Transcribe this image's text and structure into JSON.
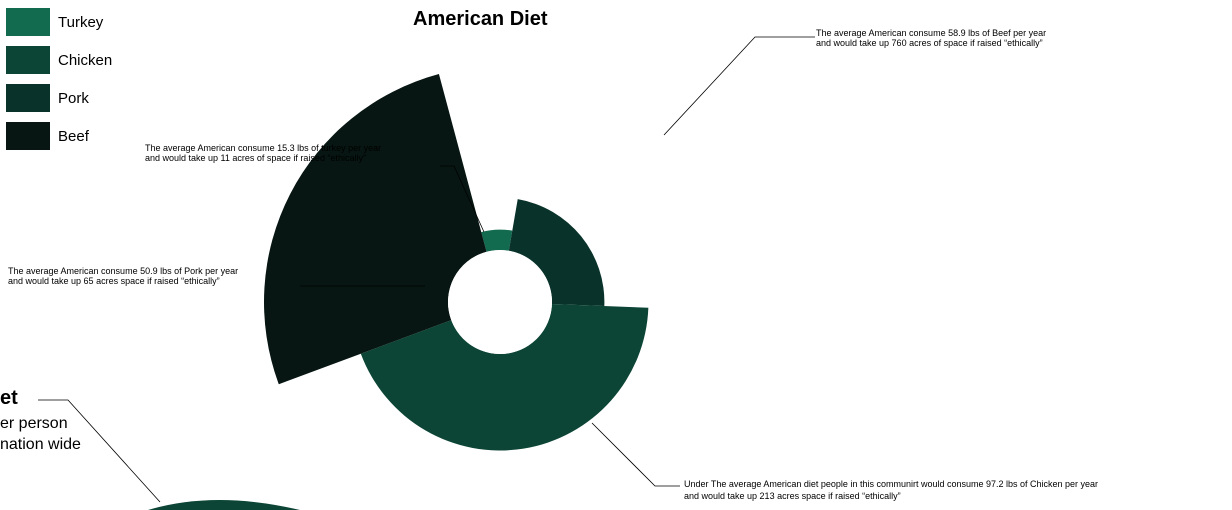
{
  "chart_data": {
    "type": "pie",
    "title": "American Diet",
    "categories": [
      "Turkey",
      "Chicken",
      "Pork",
      "Beef"
    ],
    "series": [
      {
        "name": "Turkey",
        "color": "#136b4f",
        "annotation_line1": "The average American consume 15.3 lbs of turkey per year",
        "annotation_line2": "and would take up 11 acres of space if raised “ethically”"
      },
      {
        "name": "Chicken",
        "color": "#0c4535",
        "annotation_line1": "Under The average American diet people in this communirt would consume 97.2 lbs of Chicken per year",
        "annotation_line2": "and would take up 213 acres space if raised “ethically”"
      },
      {
        "name": "Pork",
        "color": "#08322a",
        "annotation_line1": "The average American consume 50.9 lbs of Pork per year",
        "annotation_line2": "and would take up 65 acres space if raised “ethically”"
      },
      {
        "name": "Beef",
        "color": "#071612",
        "annotation_line1": "The average American consume 58.9 lbs of Beef per year",
        "annotation_line2": "and would take up 760 acres of space if raised “ethically”"
      }
    ],
    "segments": [
      {
        "name": "Turkey",
        "lbs": 15.3,
        "acres": 11
      },
      {
        "name": "Pork",
        "lbs": 50.9,
        "acres": 65
      },
      {
        "name": "Chicken",
        "lbs": 97.2,
        "acres": 213
      },
      {
        "name": "Beef",
        "lbs": 58.9,
        "acres": 760
      }
    ]
  },
  "partial_chart": {
    "title_fragment": "et",
    "line1": "er person",
    "line2": "nation wide",
    "color": "#0c4535"
  }
}
